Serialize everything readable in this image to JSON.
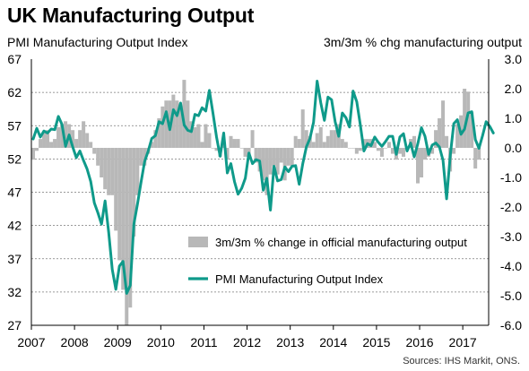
{
  "title": "UK Manufacturing Output",
  "subtitle_left": "PMI Manufacturing Output Index",
  "subtitle_right": "3m/3m % chg manufacturing output",
  "source": "Sources: IHS Markit, ONS.",
  "colors": {
    "line": "#0f9a8a",
    "bars": "#b8b8b8",
    "grid": "#7a7a7a",
    "axis": "#000000"
  },
  "chart_data": {
    "type": "bar+line",
    "x_ticks": [
      "2007",
      "2008",
      "2009",
      "2010",
      "2011",
      "2012",
      "2013",
      "2014",
      "2015",
      "2016",
      "2017"
    ],
    "x_range": [
      2007.0,
      2017.6
    ],
    "y_left": {
      "ticks": [
        "27",
        "32",
        "37",
        "42",
        "47",
        "52",
        "57",
        "62",
        "67"
      ],
      "ylim": [
        27,
        67
      ]
    },
    "y_right": {
      "ticks": [
        "-6.0",
        "-5.0",
        "-4.0",
        "-3.0",
        "-2.0",
        "-1.0",
        "0.0",
        "1.0",
        "2.0",
        "3.0"
      ],
      "ylim": [
        -6.0,
        3.0
      ]
    },
    "gridlines": "dashed, horizontal",
    "legend": "lower-right",
    "series": [
      {
        "name": "3m/3m % change in official manufacturing output",
        "type": "bar",
        "axis": "right",
        "start": "2007-01",
        "frequency": "monthly",
        "values": [
          -0.4,
          -0.1,
          0.3,
          0.5,
          0.6,
          0.2,
          0.3,
          0.7,
          0.8,
          0.9,
          0.8,
          0.6,
          0.3,
          0.6,
          0.9,
          0.5,
          0.2,
          -0.2,
          -0.6,
          -1.0,
          -1.4,
          -1.6,
          -1.6,
          -2.8,
          -3.8,
          -4.8,
          -6.0,
          -5.4,
          -3.0,
          -1.6,
          -0.6,
          -0.6,
          -0.2,
          0.2,
          0.6,
          1.0,
          1.4,
          1.6,
          1.6,
          1.8,
          1.6,
          1.3,
          2.3,
          1.6,
          0.9,
          0.7,
          0.8,
          0.2,
          0.8,
          0.5,
          0.0,
          -0.1,
          -0.3,
          0.2,
          -0.4,
          0.4,
          0.3,
          0.3,
          0.0,
          -0.3,
          -0.4,
          0.6,
          -0.5,
          -0.8,
          -1.1,
          -1.6,
          -0.9,
          -0.6,
          -0.9,
          -0.5,
          -1.1,
          -0.6,
          -0.6,
          0.4,
          0.3,
          1.3,
          0.6,
          0.4,
          0.2,
          0.5,
          0.7,
          0.2,
          0.4,
          0.6,
          0.6,
          0.8,
          0.3,
          0.2,
          0.0,
          0.0,
          -0.2,
          -0.1,
          0.3,
          0.3,
          0.3,
          0.2,
          -0.1,
          -0.3,
          0.0,
          0.2,
          -0.2,
          -0.4,
          -0.2,
          -0.3,
          0.0,
          0.3,
          0.4,
          -1.2,
          -1.0,
          -0.4,
          -0.3,
          -0.2,
          0.6,
          1.0,
          1.6,
          0.4,
          -0.8,
          -0.2,
          0.8,
          1.1,
          2.0,
          1.9,
          1.2,
          -0.7,
          -0.4
        ]
      },
      {
        "name": "PMI Manufacturing Output Index",
        "type": "line",
        "axis": "left",
        "start": "2007-01",
        "frequency": "monthly",
        "values": [
          55.0,
          56.6,
          55.3,
          56.2,
          55.9,
          56.5,
          56.4,
          58.4,
          57.2,
          53.9,
          55.6,
          53.8,
          52.2,
          53.2,
          51.8,
          50.5,
          48.6,
          45.4,
          43.9,
          42.2,
          45.7,
          41.0,
          35.4,
          32.4,
          35.9,
          36.6,
          31.8,
          33.0,
          42.2,
          45.2,
          48.5,
          51.6,
          53.2,
          55.1,
          55.5,
          57.6,
          57.3,
          59.1,
          56.4,
          59.4,
          58.5,
          60.4,
          57.1,
          56.3,
          56.1,
          58.7,
          58.5,
          59.7,
          59.2,
          62.3,
          58.9,
          55.3,
          52.4,
          55.9,
          49.9,
          51.3,
          48.6,
          46.7,
          47.6,
          49.1,
          52.9,
          51.3,
          51.9,
          51.7,
          47.3,
          49.1,
          44.3,
          50.9,
          48.7,
          48.9,
          50.8,
          50.1,
          50.9,
          51.0,
          48.2,
          51.3,
          53.8,
          55.1,
          57.5,
          63.7,
          60.4,
          57.8,
          61.3,
          60.9,
          57.6,
          55.4,
          58.9,
          58.2,
          56.8,
          62.2,
          60.6,
          57.1,
          53.2,
          54.3,
          54.0,
          55.3,
          54.5,
          53.9,
          54.6,
          55.4,
          55.4,
          52.7,
          55.3,
          55.8,
          53.2,
          54.4,
          52.3,
          54.3,
          56.7,
          55.4,
          52.7,
          54.1,
          54.4,
          53.8,
          51.8,
          46.0,
          52.4,
          57.3,
          57.9,
          55.7,
          56.5,
          58.9,
          59.1,
          54.9,
          53.6,
          55.5,
          57.6,
          56.9,
          55.9
        ]
      }
    ]
  }
}
